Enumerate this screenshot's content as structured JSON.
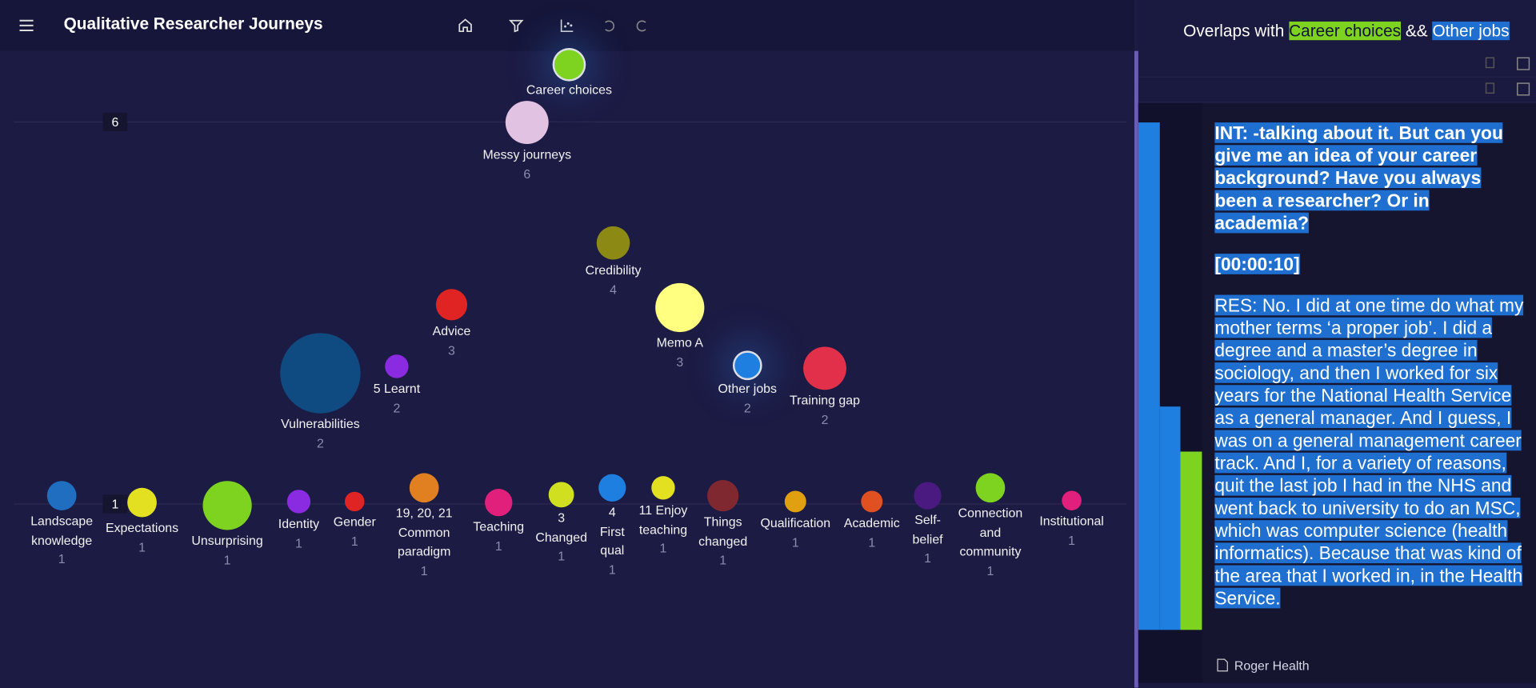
{
  "header": {
    "title": "Qualitative Researcher Journeys"
  },
  "scale_labels": [
    6,
    1
  ],
  "nodes": [
    {
      "label": "Career choices"
    },
    {
      "label": "Messy journeys",
      "count": 6
    },
    {
      "label": "Credibility",
      "count": 4
    },
    {
      "label": "Advice",
      "count": 3
    },
    {
      "label": "Memo A",
      "count": 3
    },
    {
      "label": "5 Learnt",
      "count": 2
    },
    {
      "label": "Vulnerabilities",
      "count": 2
    },
    {
      "label": "Other jobs",
      "count": 2
    },
    {
      "label": "Training gap",
      "count": 2
    },
    {
      "label": "Landscape knowledge",
      "count": 1
    },
    {
      "label": "Expectations",
      "count": 1
    },
    {
      "label": "Unsurprising",
      "count": 1
    },
    {
      "label": "Identity",
      "count": 1
    },
    {
      "label": "Gender",
      "count": 1
    },
    {
      "label": "19, 20, 21 Common paradigm",
      "count": 1
    },
    {
      "label": "Teaching",
      "count": 1
    },
    {
      "label": "3 Changed",
      "count": 1
    },
    {
      "label": "4 First qual",
      "count": 1
    },
    {
      "label": "11 Enjoy teaching",
      "count": 1
    },
    {
      "label": "Things changed",
      "count": 1
    },
    {
      "label": "Qualification",
      "count": 1
    },
    {
      "label": "Academic",
      "count": 1
    },
    {
      "label": "Self-belief",
      "count": 1
    },
    {
      "label": "Connection and community",
      "count": 1
    },
    {
      "label": "Institutional",
      "count": 1
    }
  ],
  "overlap": {
    "prefix": "Overlaps with",
    "codes": [
      "Career choices",
      "Other jobs"
    ],
    "joiner": "&&"
  },
  "transcript": {
    "paragraphs": [
      "INT: -talking about it. But can you give me an idea of your career background? Have you always been a researcher? Or in academia?",
      "[00:00:10]",
      "RES: No. I did at one time do what my mother terms ‘a proper job’. I did a degree and a master’s degree in sociology, and then I worked for six years for the National Health Service as a general manager. And I guess, I was on a general management career track. And I, for a variety of reasons, quit the last job I had in the NHS and went back to university to do an MSC, which was computer science (health informatics). Because that was kind of the area that I worked in, in the Health Service."
    ],
    "source": "Roger Health"
  }
}
